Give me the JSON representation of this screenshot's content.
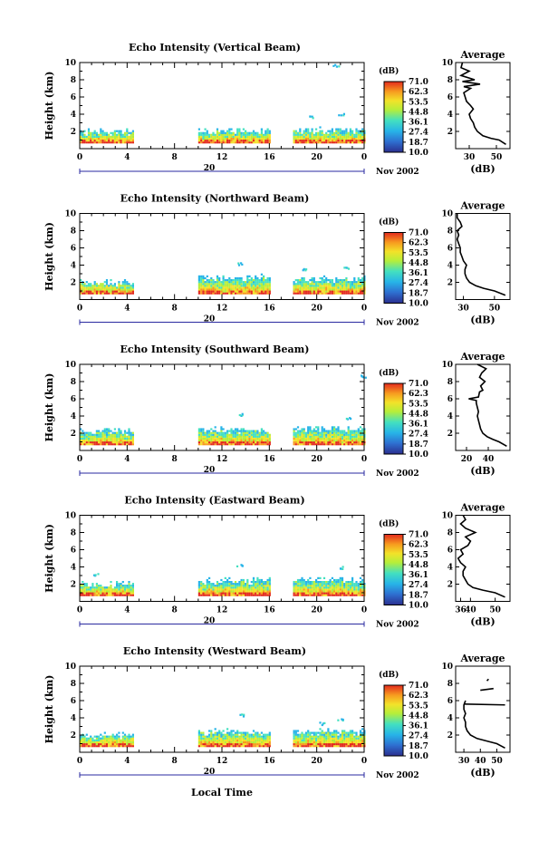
{
  "figure": {
    "xlabel": "Local Time",
    "date_label": "20",
    "month_label": "Nov 2002",
    "colorbar_unit": "(dB)",
    "colorbar_ticks": [
      "71.0",
      "62.3",
      "53.5",
      "44.8",
      "36.1",
      "27.4",
      "18.7",
      "10.0"
    ],
    "average_title": "Average",
    "average_xlabel": "(dB)",
    "palette": [
      "#2b2f8f",
      "#2e6fd0",
      "#27b4e8",
      "#43e0c0",
      "#b6ee3a",
      "#f3e229",
      "#f79b1f",
      "#e32a1d"
    ]
  },
  "chart_data": [
    {
      "type": "heatmap",
      "title": "Echo Intensity (Vertical Beam)",
      "ylabel": "Height (km)",
      "x_ticks": [
        "0",
        "4",
        "8",
        "12",
        "16",
        "20",
        "0"
      ],
      "xlim": [
        0,
        24
      ],
      "ylim": [
        0,
        10
      ],
      "y_ticks": [
        2,
        4,
        6,
        8,
        10
      ],
      "value_range_dB": [
        10.0,
        71.0
      ],
      "data_periods_h": [
        [
          0,
          4.5
        ],
        [
          10,
          16
        ],
        [
          18,
          24
        ]
      ],
      "echo_top_km": [
        2.0,
        2.1,
        2.2
      ],
      "sparse_echoes": [
        {
          "x": 22,
          "y": 3.8
        },
        {
          "x": 19.5,
          "y": 3.5
        },
        {
          "x": 21.6,
          "y": 9.5
        }
      ],
      "average": {
        "x_ticks": [
          "30",
          "50"
        ],
        "xlim": [
          20,
          60
        ],
        "profile": [
          [
            57,
            0.5
          ],
          [
            52,
            1.0
          ],
          [
            46,
            1.2
          ],
          [
            40,
            1.5
          ],
          [
            36,
            2.0
          ],
          [
            34,
            2.5
          ],
          [
            33,
            3.0
          ],
          [
            31,
            3.5
          ],
          [
            30,
            4.0
          ],
          [
            33,
            4.6
          ],
          [
            31,
            5.0
          ],
          [
            28,
            5.5
          ],
          [
            27,
            6.0
          ],
          [
            26,
            6.5
          ],
          [
            31,
            7.0
          ],
          [
            26,
            7.2
          ],
          [
            38,
            7.5
          ],
          [
            25,
            7.8
          ],
          [
            34,
            8.0
          ],
          [
            24,
            8.5
          ],
          [
            30,
            9.0
          ],
          [
            24,
            9.4
          ],
          [
            25,
            10.0
          ]
        ]
      }
    },
    {
      "type": "heatmap",
      "title": "Echo Intensity (Northward Beam)",
      "ylabel": "Height (km)",
      "x_ticks": [
        "0",
        "4",
        "8",
        "12",
        "16",
        "20",
        "0"
      ],
      "xlim": [
        0,
        24
      ],
      "ylim": [
        0,
        10
      ],
      "y_ticks": [
        2,
        4,
        6,
        8,
        10
      ],
      "value_range_dB": [
        10.0,
        71.0
      ],
      "data_periods_h": [
        [
          0,
          4.5
        ],
        [
          10,
          16
        ],
        [
          18,
          24
        ]
      ],
      "echo_top_km": [
        2.0,
        2.6,
        2.4
      ],
      "sparse_echoes": [
        {
          "x": 13.5,
          "y": 4.0
        },
        {
          "x": 22.5,
          "y": 3.6
        },
        {
          "x": 19.0,
          "y": 3.3
        }
      ],
      "average": {
        "x_ticks": [
          "30",
          "50"
        ],
        "xlim": [
          25,
          60
        ],
        "profile": [
          [
            57,
            0.5
          ],
          [
            50,
            1.0
          ],
          [
            43,
            1.3
          ],
          [
            38,
            1.6
          ],
          [
            34,
            2.0
          ],
          [
            32,
            2.5
          ],
          [
            31,
            3.0
          ],
          [
            31,
            3.5
          ],
          [
            32,
            4.0
          ],
          [
            30,
            4.5
          ],
          [
            29,
            5.0
          ],
          [
            28,
            5.5
          ],
          [
            28,
            6.0
          ],
          [
            27,
            6.5
          ],
          [
            26,
            7.0
          ],
          [
            27,
            7.5
          ],
          [
            26,
            8.0
          ],
          [
            29,
            8.5
          ],
          [
            28,
            9.0
          ],
          [
            26,
            9.5
          ],
          [
            26,
            10.0
          ]
        ]
      }
    },
    {
      "type": "heatmap",
      "title": "Echo Intensity (Southward Beam)",
      "ylabel": "Height (km)",
      "x_ticks": [
        "0",
        "4",
        "8",
        "12",
        "16",
        "20",
        "0"
      ],
      "xlim": [
        0,
        24
      ],
      "ylim": [
        0,
        10
      ],
      "y_ticks": [
        2,
        4,
        6,
        8,
        10
      ],
      "value_range_dB": [
        10.0,
        71.0
      ],
      "data_periods_h": [
        [
          0,
          4.5
        ],
        [
          10,
          16
        ],
        [
          18,
          24
        ]
      ],
      "echo_top_km": [
        2.2,
        2.4,
        2.5
      ],
      "sparse_echoes": [
        {
          "x": 13.5,
          "y": 4.0
        },
        {
          "x": 22.5,
          "y": 3.6
        },
        {
          "x": 23.8,
          "y": 8.5
        }
      ],
      "average": {
        "x_ticks": [
          "20",
          "40"
        ],
        "xlim": [
          10,
          60
        ],
        "profile": [
          [
            57,
            0.5
          ],
          [
            50,
            1.0
          ],
          [
            44,
            1.3
          ],
          [
            39,
            1.6
          ],
          [
            35,
            2.0
          ],
          [
            33,
            2.5
          ],
          [
            32,
            3.0
          ],
          [
            31,
            3.5
          ],
          [
            30,
            4.0
          ],
          [
            31,
            4.5
          ],
          [
            30,
            5.0
          ],
          [
            29,
            5.5
          ],
          [
            29,
            5.8
          ],
          [
            22,
            6.0
          ],
          [
            31,
            6.2
          ],
          [
            32,
            6.8
          ],
          [
            35,
            7.0
          ],
          [
            33,
            7.5
          ],
          [
            37,
            8.0
          ],
          [
            32,
            8.5
          ],
          [
            34,
            9.0
          ],
          [
            38,
            9.5
          ],
          [
            30,
            10.0
          ]
        ]
      }
    },
    {
      "type": "heatmap",
      "title": "Echo Intensity (Eastward Beam)",
      "ylabel": "Height (km)",
      "x_ticks": [
        "0",
        "4",
        "8",
        "12",
        "16",
        "20",
        "0"
      ],
      "xlim": [
        0,
        24
      ],
      "ylim": [
        0,
        10
      ],
      "y_ticks": [
        2,
        4,
        6,
        8,
        10
      ],
      "value_range_dB": [
        10.0,
        71.0
      ],
      "data_periods_h": [
        [
          0,
          4.5
        ],
        [
          10,
          16
        ],
        [
          18,
          24
        ]
      ],
      "echo_top_km": [
        2.0,
        2.4,
        2.5
      ],
      "sparse_echoes": [
        {
          "x": 1.2,
          "y": 3.0
        },
        {
          "x": 13.5,
          "y": 4.0
        },
        {
          "x": 22.0,
          "y": 3.8
        }
      ],
      "average": {
        "x_ticks": [
          "36",
          "40",
          "50"
        ],
        "xlim": [
          34,
          56
        ],
        "profile": [
          [
            54,
            0.5
          ],
          [
            50,
            1.0
          ],
          [
            45,
            1.3
          ],
          [
            41,
            1.6
          ],
          [
            39,
            2.0
          ],
          [
            38,
            2.5
          ],
          [
            37,
            3.0
          ],
          [
            37,
            3.5
          ],
          [
            38,
            4.0
          ],
          [
            36,
            4.5
          ],
          [
            35,
            5.0
          ],
          [
            37,
            5.5
          ],
          [
            36,
            6.0
          ],
          [
            39,
            6.5
          ],
          [
            40,
            7.0
          ],
          [
            38,
            7.5
          ],
          [
            42,
            8.0
          ],
          [
            38,
            8.5
          ],
          [
            36,
            9.0
          ],
          [
            38,
            9.5
          ],
          [
            37,
            10.0
          ]
        ]
      }
    },
    {
      "type": "heatmap",
      "title": "Echo Intensity (Westward Beam)",
      "ylabel": "Height (km)",
      "x_ticks": [
        "0",
        "4",
        "8",
        "12",
        "16",
        "20",
        "0"
      ],
      "xlim": [
        0,
        24
      ],
      "ylim": [
        0,
        10
      ],
      "y_ticks": [
        2,
        4,
        6,
        8,
        10
      ],
      "value_range_dB": [
        10.0,
        71.0
      ],
      "data_periods_h": [
        [
          0,
          4.5
        ],
        [
          10,
          16
        ],
        [
          18,
          24
        ]
      ],
      "echo_top_km": [
        2.0,
        2.4,
        2.4
      ],
      "sparse_echoes": [
        {
          "x": 13.5,
          "y": 4.2
        },
        {
          "x": 22.0,
          "y": 3.6
        },
        {
          "x": 20.5,
          "y": 3.2
        }
      ],
      "average": {
        "x_ticks": [
          "30",
          "40",
          "50"
        ],
        "xlim": [
          25,
          58
        ],
        "profile": [
          [
            55,
            0.5
          ],
          [
            50,
            1.0
          ],
          [
            44,
            1.3
          ],
          [
            38,
            1.6
          ],
          [
            34,
            2.0
          ],
          [
            32,
            2.5
          ],
          [
            31,
            3.0
          ],
          [
            31,
            3.5
          ],
          [
            30,
            4.0
          ],
          [
            31,
            4.5
          ],
          [
            30,
            5.0
          ],
          [
            30,
            5.5
          ],
          [
            31,
            6.0
          ]
        ],
        "segments": [
          [
            [
              30,
              5.6
            ],
            [
              55,
              5.5
            ]
          ],
          [
            [
              40,
              7.2
            ],
            [
              48,
              7.4
            ]
          ],
          [
            [
              44,
              8.3
            ],
            [
              45,
              8.5
            ]
          ]
        ]
      }
    }
  ]
}
